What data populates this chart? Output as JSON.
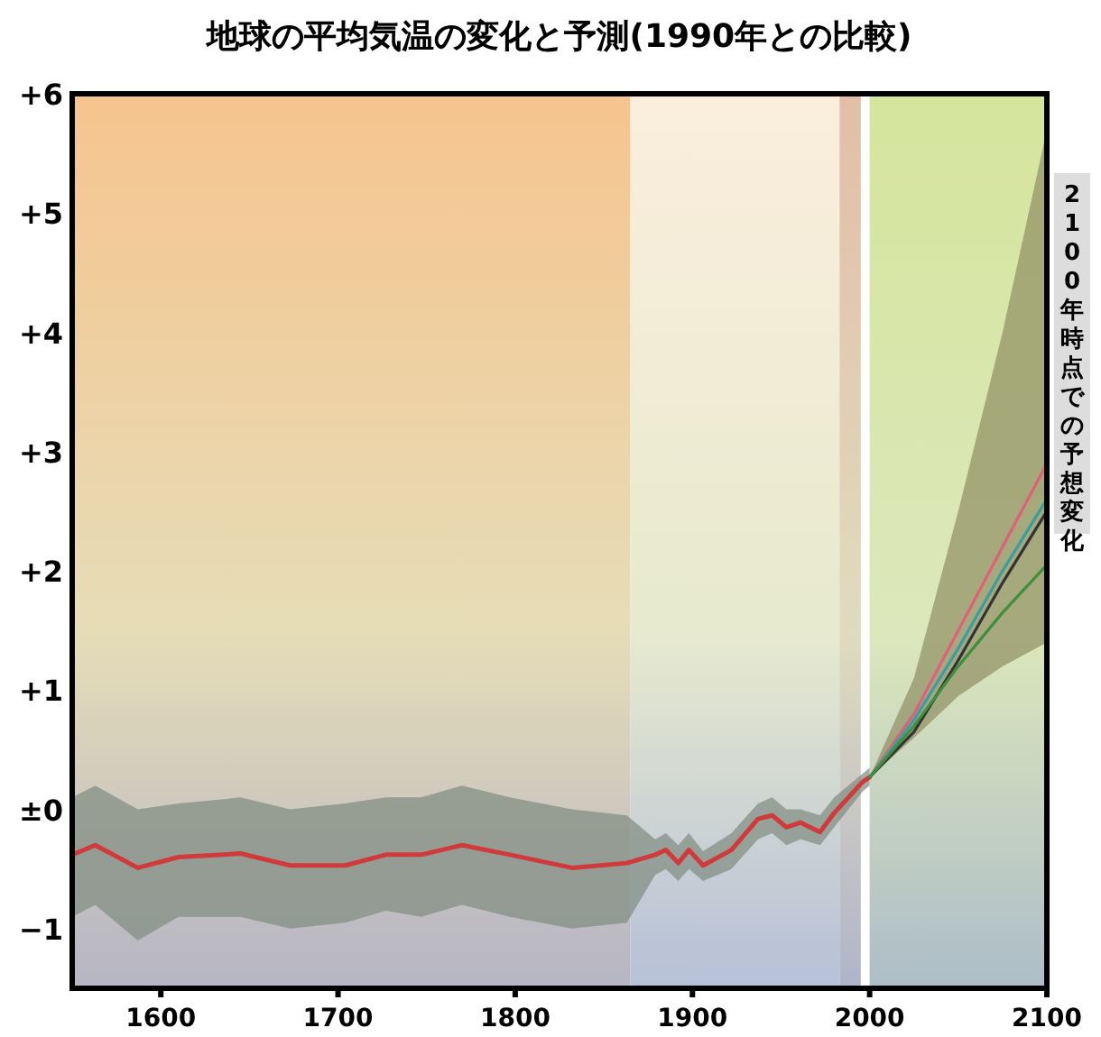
{
  "chart_data": {
    "type": "line",
    "title": "地球の平均気温の変化と予測(1990年との比較)",
    "annotations": [
      "2100年時点での予想変化"
    ],
    "xlim": [
      1550,
      2100
    ],
    "xticks": [
      1600,
      1700,
      1800,
      1900,
      2000,
      2100
    ],
    "ylim": [
      -1.5,
      6
    ],
    "yticks": [
      {
        "value": 6,
        "label": "+6"
      },
      {
        "value": 5,
        "label": "+5"
      },
      {
        "value": 4,
        "label": "+4"
      },
      {
        "value": 3,
        "label": "+3"
      },
      {
        "value": 2,
        "label": "+2"
      },
      {
        "value": 1,
        "label": "+1"
      },
      {
        "value": 0,
        "label": "±0"
      },
      {
        "value": -1,
        "label": "−1"
      }
    ],
    "bands": [
      {
        "axis": "x",
        "from": 1550,
        "to": 1865,
        "color": "#f6c48e"
      },
      {
        "axis": "x",
        "from": 1865,
        "to": 1983,
        "color": "#fbeedd"
      },
      {
        "axis": "x",
        "from": 1983,
        "to": 1995,
        "color": "#e2bea6"
      },
      {
        "axis": "x",
        "from": 2000,
        "to": 2100,
        "color": "#d6e59c"
      }
    ],
    "series": [
      {
        "color": "#d03a3a",
        "x": [
          1550,
          1563,
          1587,
          1610,
          1645,
          1673,
          1704,
          1727,
          1747,
          1770,
          1797,
          1832,
          1863,
          1879,
          1885,
          1892,
          1898,
          1906,
          1922,
          1937,
          1945,
          1953,
          1961,
          1972,
          1980,
          1996,
          2000
        ],
        "values": [
          -0.38,
          -0.3,
          -0.49,
          -0.4,
          -0.37,
          -0.47,
          -0.47,
          -0.38,
          -0.38,
          -0.3,
          -0.38,
          -0.49,
          -0.45,
          -0.38,
          -0.34,
          -0.45,
          -0.34,
          -0.47,
          -0.34,
          -0.08,
          -0.05,
          -0.15,
          -0.11,
          -0.19,
          -0.03,
          0.23,
          0.27
        ],
        "lower": [
          -0.9,
          -0.8,
          -1.1,
          -0.9,
          -0.9,
          -1.0,
          -0.95,
          -0.85,
          -0.9,
          -0.8,
          -0.9,
          -1.0,
          -0.95,
          -0.55,
          -0.5,
          -0.6,
          -0.5,
          -0.6,
          -0.5,
          -0.25,
          -0.2,
          -0.3,
          -0.25,
          -0.3,
          -0.15,
          0.15,
          0.2
        ],
        "upper": [
          0.1,
          0.2,
          0.0,
          0.05,
          0.1,
          0.0,
          0.05,
          0.1,
          0.1,
          0.2,
          0.1,
          0.0,
          -0.05,
          -0.25,
          -0.2,
          -0.3,
          -0.2,
          -0.35,
          -0.2,
          0.05,
          0.1,
          0.0,
          0.0,
          -0.05,
          0.1,
          0.3,
          0.35
        ]
      },
      {
        "color": "#e0607a",
        "x": [
          2000,
          2025,
          2050,
          2075,
          2100
        ],
        "values": [
          0.27,
          0.8,
          1.5,
          2.2,
          2.9
        ],
        "lower": [
          0.27,
          0.6,
          0.95,
          1.2,
          1.4
        ],
        "upper": [
          0.27,
          1.1,
          2.5,
          4.0,
          5.7
        ]
      },
      {
        "color": "#3a9ea0",
        "x": [
          2000,
          2025,
          2050,
          2075,
          2100
        ],
        "values": [
          0.27,
          0.75,
          1.35,
          2.0,
          2.6
        ]
      },
      {
        "color": "#333333",
        "x": [
          2000,
          2025,
          2050,
          2075,
          2100
        ],
        "values": [
          0.27,
          0.65,
          1.25,
          1.9,
          2.5
        ]
      },
      {
        "color": "#3f8f3f",
        "x": [
          2000,
          2025,
          2050,
          2075,
          2100
        ],
        "values": [
          0.27,
          0.7,
          1.2,
          1.65,
          2.05
        ]
      }
    ]
  }
}
